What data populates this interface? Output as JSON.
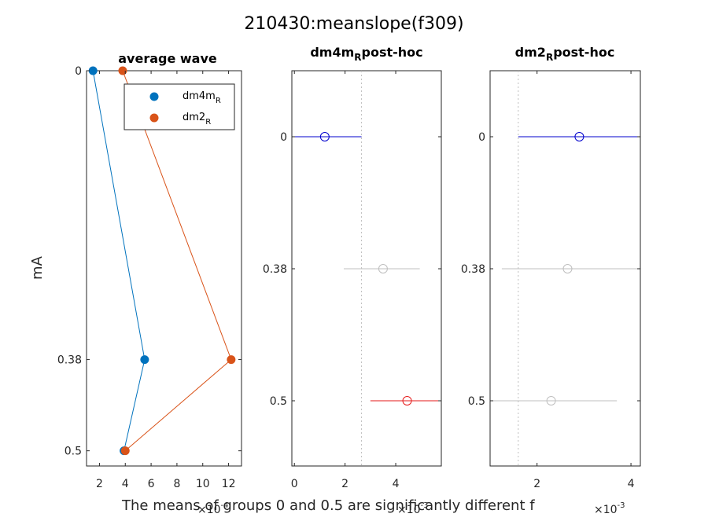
{
  "figure": {
    "title": "210430:meanslope(f309)",
    "footer": "The means of groups 0 and 0.5 are significantly different f"
  },
  "chart_data": [
    {
      "type": "line",
      "title": "average wave",
      "ylabel": "mA",
      "xlim": [
        1,
        13
      ],
      "x_ticks": [
        2,
        4,
        6,
        8,
        10,
        12
      ],
      "x_tick_labels": [
        "2",
        "4",
        "6",
        "8",
        "10",
        "12"
      ],
      "x_exponent": "×10",
      "x_exponent_power": "-4",
      "y_categories": [
        "0",
        "0.38",
        "0.5"
      ],
      "y_reversed": true,
      "ylim": [
        0,
        0.52
      ],
      "legend": {
        "placement": "top-right",
        "entries": [
          {
            "base": "dm4m",
            "sub": "R"
          },
          {
            "base": "dm2",
            "sub": "R"
          }
        ]
      },
      "series": [
        {
          "base": "dm4m",
          "sub": "R",
          "color": "#0072BD",
          "points": [
            {
              "x": 1.5,
              "y": 0
            },
            {
              "x": 5.5,
              "y": 0.38
            },
            {
              "x": 3.9,
              "y": 0.5
            }
          ]
        },
        {
          "base": "dm2",
          "sub": "R",
          "color": "#D95319",
          "points": [
            {
              "x": 3.8,
              "y": 0
            },
            {
              "x": 12.2,
              "y": 0.38
            },
            {
              "x": 4.0,
              "y": 0.5
            }
          ]
        }
      ]
    },
    {
      "type": "scatter",
      "title_base": "dm4m",
      "title_sub": "R",
      "title_rest": "post-hoc",
      "xlim": [
        -0.1,
        5.8
      ],
      "x_ticks": [
        0,
        2,
        4
      ],
      "x_tick_labels": [
        "0",
        "2",
        "4"
      ],
      "x_exponent": "×10",
      "x_exponent_power": "-3",
      "y_categories": [
        "0",
        "0.38",
        "0.5"
      ],
      "vlines": [
        2.65
      ],
      "intervals": [
        {
          "group": "0",
          "center": 1.2,
          "low": -0.3,
          "high": 2.65,
          "color": "#0000CC"
        },
        {
          "group": "0.38",
          "center": 3.5,
          "low": 1.95,
          "high": 4.95,
          "color": "#BFBFBF"
        },
        {
          "group": "0.5",
          "center": 4.45,
          "low": 3.0,
          "high": 6.2,
          "color": "#E61A1A"
        }
      ]
    },
    {
      "type": "scatter",
      "title_base": "dm2",
      "title_sub": "R",
      "title_rest": "post-hoc",
      "xlim": [
        1.0,
        4.2
      ],
      "x_ticks": [
        2,
        4
      ],
      "x_tick_labels": [
        "2",
        "4"
      ],
      "x_exponent": "×10",
      "x_exponent_power": "-3",
      "y_categories": [
        "0",
        "0.38",
        "0.5"
      ],
      "vlines": [
        1.6
      ],
      "intervals": [
        {
          "group": "0",
          "center": 2.9,
          "low": 1.6,
          "high": 4.5,
          "color": "#0000CC"
        },
        {
          "group": "0.38",
          "center": 2.65,
          "low": 1.25,
          "high": 4.5,
          "color": "#BFBFBF"
        },
        {
          "group": "0.5",
          "center": 2.3,
          "low": 0.8,
          "high": 3.7,
          "color": "#BFBFBF"
        }
      ]
    }
  ]
}
